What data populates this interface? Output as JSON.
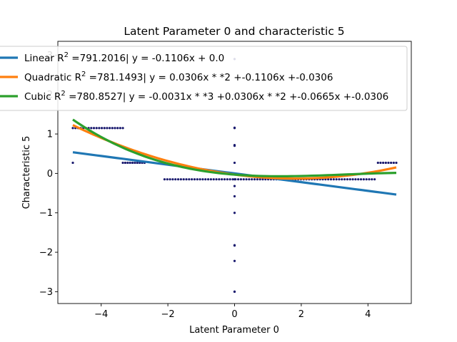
{
  "chart_data": {
    "type": "scatter",
    "title": "Latent Parameter 0 and characteristic 5",
    "xlabel": "Latent Parameter 0",
    "ylabel": "Characteristic 5",
    "xlim": [
      -5.3,
      5.3
    ],
    "ylim": [
      -3.3,
      3.35
    ],
    "xticks": [
      -4,
      -2,
      0,
      2,
      4
    ],
    "yticks": [
      -3,
      -2,
      -1,
      0,
      1,
      2,
      3
    ],
    "xtick_labels": [
      "−4",
      "−2",
      "0",
      "2",
      "4"
    ],
    "ytick_labels": [
      "−3",
      "−2",
      "−1",
      "0",
      "1",
      "2",
      "3"
    ],
    "grid": false,
    "legend_position": "upper-left",
    "point_color": "#1a1a6e",
    "points": {
      "vertical_x": 0,
      "vertical_y": [
        -3.0,
        -3.0,
        -2.22,
        -1.83,
        -1.82,
        -1.0,
        -0.58,
        -0.32,
        -0.15,
        0.27,
        0.7,
        0.72,
        1.15,
        1.16,
        2.0,
        2.9
      ],
      "clusters": [
        {
          "x_from": -4.85,
          "x_to": -3.35,
          "y": 1.15,
          "count": 20
        },
        {
          "x_from": -3.35,
          "x_to": -2.7,
          "y": 0.27,
          "count": 10
        },
        {
          "x_from": -2.1,
          "x_to": 4.2,
          "y": -0.15,
          "count": 78
        },
        {
          "x_from": 4.3,
          "x_to": 4.85,
          "y": 0.27,
          "count": 8
        },
        {
          "x_from": -4.85,
          "x_to": -4.85,
          "y": 0.27,
          "count": 1
        }
      ]
    },
    "x_range": [
      -4.85,
      4.85
    ],
    "series": [
      {
        "name": "Linear",
        "label_prefix": "Linear R",
        "label_sup": "2",
        "label_rest": " =791.2016| y = -0.1106x + 0.0",
        "color": "#1f77b4",
        "coefficients": [
          0.0,
          -0.1106
        ]
      },
      {
        "name": "Quadratic",
        "label_prefix": "Quadratic R",
        "label_sup": "2",
        "label_rest": " =781.1493| y = 0.0306x * *2 +-0.1106x +-0.0306",
        "color": "#ff7f0e",
        "coefficients": [
          -0.0306,
          -0.1106,
          0.0306
        ]
      },
      {
        "name": "Cubic",
        "label_prefix": "Cubic R",
        "label_sup": "2",
        "label_rest": " =780.8527| y = -0.0031x * *3 +0.0306x * *2 +-0.0665x +-0.0306",
        "color": "#2ca02c",
        "coefficients": [
          -0.0306,
          -0.0665,
          0.0306,
          -0.0031
        ]
      }
    ]
  }
}
